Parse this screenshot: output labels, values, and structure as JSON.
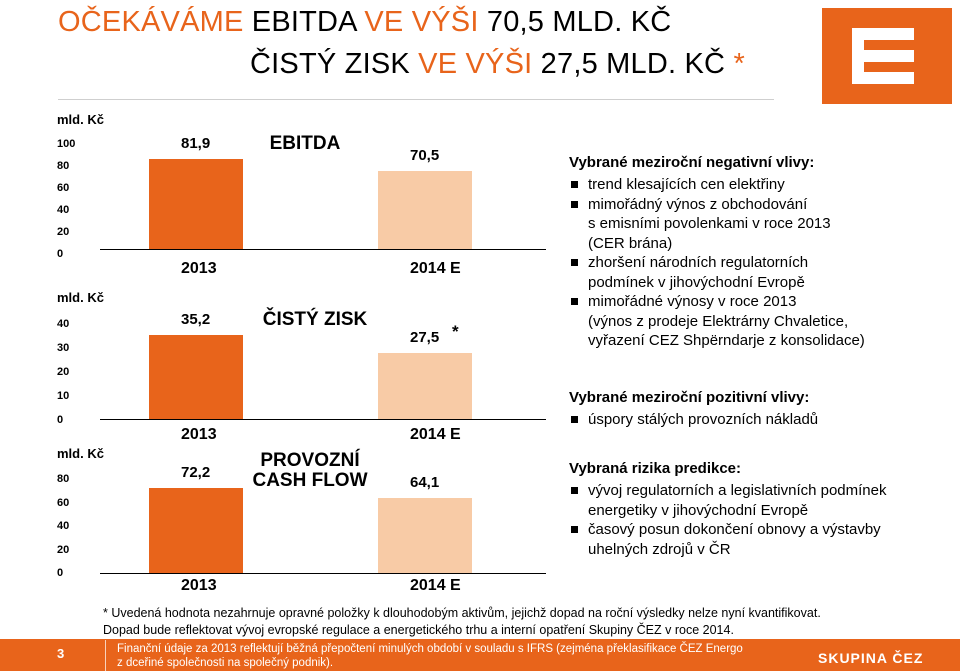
{
  "title": {
    "line1_accent": "OČEKÁVÁME",
    "line1_mid": " EBITDA ",
    "line1_accent2": "VE VÝŠI",
    "line1_end": " 70,5 MLD. KČ",
    "line2_start": "ČISTÝ ZISK ",
    "line2_accent": "VE VÝŠI",
    "line2_mid": " 27,5 MLD. KČ ",
    "line2_star": "*"
  },
  "colors": {
    "accent": "#e8641b",
    "bar_2013": "#e8641b",
    "bar_2014": "#f8cba6"
  },
  "chart_data": [
    {
      "type": "bar",
      "title": "EBITDA",
      "ylabel": "mld. Kč",
      "categories": [
        "2013",
        "2014 E"
      ],
      "values": [
        81.9,
        70.5
      ],
      "value_labels": [
        "81,9",
        "70,5"
      ],
      "ylim": [
        0,
        100
      ],
      "ticks": [
        "100",
        "80",
        "60",
        "40",
        "20",
        "0"
      ]
    },
    {
      "type": "bar",
      "title": "ČISTÝ ZISK",
      "ylabel": "mld. Kč",
      "categories": [
        "2013",
        "2014 E"
      ],
      "values": [
        35.2,
        27.5
      ],
      "value_labels": [
        "35,2",
        "27,5"
      ],
      "annotation": "*",
      "ylim": [
        0,
        40
      ],
      "ticks": [
        "40",
        "30",
        "20",
        "10",
        "0"
      ]
    },
    {
      "type": "bar",
      "title": "PROVOZNÍ\nCASH FLOW",
      "ylabel": "mld. Kč",
      "categories": [
        "2013",
        "2014 E"
      ],
      "values": [
        72.2,
        64.1
      ],
      "value_labels": [
        "72,2",
        "64,1"
      ],
      "ylim": [
        0,
        80
      ],
      "ticks": [
        "80",
        "60",
        "40",
        "20",
        "0"
      ]
    }
  ],
  "negative": {
    "heading": "Vybrané meziroční negativní vlivy:",
    "items": [
      "trend klesajících cen elektřiny",
      "mimořádný výnos z obchodování\ns emisními povolenkami v roce 2013\n(CER brána)",
      "zhoršení národních regulatorních\npodmínek v jihovýchodní Evropě",
      "mimořádné výnosy v roce 2013\n(výnos z prodeje Elektrárny Chvaletice,\nvyřazení CEZ Shpërndarje z konsolidace)"
    ]
  },
  "positive": {
    "heading": "Vybrané meziroční pozitivní vlivy:",
    "items": [
      "úspory stálých provozních nákladů"
    ]
  },
  "risks": {
    "heading": "Vybraná rizika predikce:",
    "items": [
      "vývoj regulatorních a legislativních podmínek\nenergetiky v jihovýchodní Evropě",
      "časový posun dokončení obnovy a výstavby\nuhelných zdrojů v ČR"
    ]
  },
  "footnote": "* Uvedená hodnota nezahrnuje opravné položky k dlouhodobým aktivům, jejichž dopad na roční výsledky nelze nyní kvantifikovat.\n   Dopad bude reflektovat vývoj evropské regulace a energetického trhu a interní opatření Skupiny ČEZ v roce 2014.",
  "footer": {
    "page": "3",
    "text": "Finanční údaje za 2013 reflektují běžná přepočtení minulých období v souladu s IFRS (zejména překlasifikace ČEZ Energo\nz dceřiné společnosti na společný podnik).",
    "brand": "SKUPINA ČEZ",
    "logo_icon": "cez-logo-icon"
  }
}
